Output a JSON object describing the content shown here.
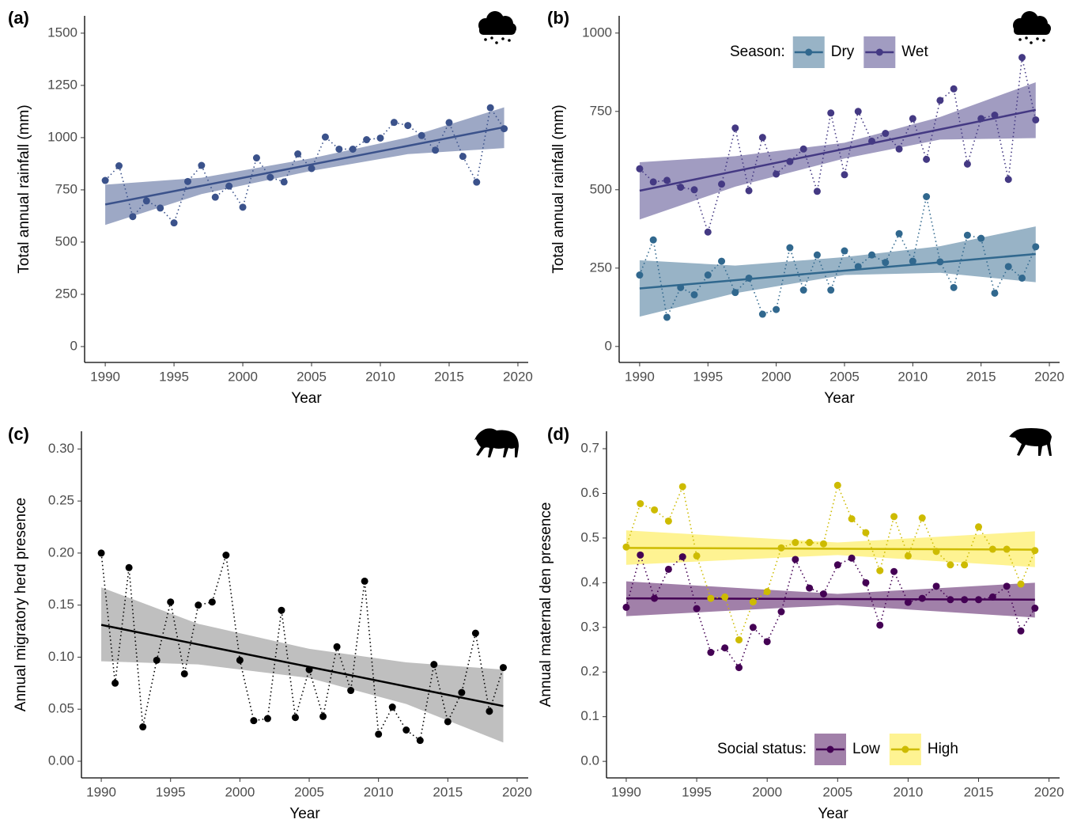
{
  "chart_data": [
    {
      "type": "line",
      "panel_label": "(a)",
      "x_label": "Year",
      "y_label": "Total annual rainfall (mm)",
      "x": [
        1990,
        1991,
        1992,
        1993,
        1994,
        1995,
        1996,
        1997,
        1998,
        1999,
        2000,
        2001,
        2002,
        2003,
        2004,
        2005,
        2006,
        2007,
        2008,
        2009,
        2010,
        2011,
        2012,
        2013,
        2014,
        2015,
        2016,
        2017,
        2018,
        2019
      ],
      "xlim": [
        1988.5,
        2020.75
      ],
      "xticks": [
        1990,
        1995,
        2000,
        2005,
        2010,
        2015,
        2020
      ],
      "ylim": [
        -76,
        1583
      ],
      "yticks": [
        0,
        250,
        500,
        750,
        1000,
        1250,
        1500
      ],
      "icon": "rain",
      "series": [
        {
          "color": "#3b528b",
          "values": [
            795,
            865,
            622,
            697,
            663,
            592,
            790,
            867,
            715,
            768,
            667,
            903,
            810,
            788,
            922,
            852,
            1003,
            945,
            945,
            990,
            998,
            1073,
            1058,
            1010,
            940,
            1072,
            910,
            787,
            1143,
            1043
          ],
          "fit": {
            "x": [
              1990,
              2019
            ],
            "values": [
              680,
              1050
            ]
          },
          "ribbon": {
            "x": [
              1990,
              1997,
              2005,
              2012,
              2019
            ],
            "lower": [
              582,
              730,
              841,
              921,
              950
            ],
            "upper": [
              775,
              808,
              901,
              1001,
              1145
            ]
          }
        }
      ]
    },
    {
      "type": "line",
      "panel_label": "(b)",
      "x_label": "Year",
      "y_label": "Total annual rainfall (mm)",
      "x": [
        1990,
        1991,
        1992,
        1993,
        1994,
        1995,
        1996,
        1997,
        1998,
        1999,
        2000,
        2001,
        2002,
        2003,
        2004,
        2005,
        2006,
        2007,
        2008,
        2009,
        2010,
        2011,
        2012,
        2013,
        2014,
        2015,
        2016,
        2017,
        2018,
        2019
      ],
      "xlim": [
        1988.5,
        2020.75
      ],
      "xticks": [
        1990,
        1995,
        2000,
        2005,
        2010,
        2015,
        2020
      ],
      "ylim": [
        -51,
        1055
      ],
      "yticks": [
        0,
        250,
        500,
        750,
        1000
      ],
      "icon": "rain",
      "legend_title": "Season:",
      "legend_position": "top",
      "series": [
        {
          "name": "Dry",
          "color": "#31688e",
          "values": [
            228,
            340,
            93,
            188,
            165,
            228,
            272,
            172,
            218,
            103,
            118,
            315,
            180,
            292,
            180,
            305,
            255,
            292,
            268,
            360,
            272,
            478,
            270,
            188,
            355,
            345,
            170,
            255,
            218,
            318
          ],
          "fit": {
            "x": [
              1990,
              2019
            ],
            "values": [
              185,
              295
            ]
          },
          "ribbon": {
            "x": [
              1990,
              1997,
              2005,
              2012,
              2019
            ],
            "lower": [
              95,
              170,
              228,
              235,
              205
            ],
            "upper": [
              275,
              258,
              285,
              320,
              383
            ]
          }
        },
        {
          "name": "Wet",
          "color": "#443983",
          "values": [
            567,
            525,
            530,
            508,
            500,
            365,
            518,
            697,
            497,
            667,
            550,
            590,
            630,
            495,
            745,
            548,
            750,
            655,
            680,
            630,
            727,
            597,
            785,
            822,
            582,
            727,
            738,
            533,
            922,
            723
          ],
          "fit": {
            "x": [
              1990,
              2019
            ],
            "values": [
              497,
              755
            ]
          },
          "ribbon": {
            "x": [
              1990,
              1997,
              2005,
              2012,
              2019
            ],
            "lower": [
              405,
              510,
              600,
              660,
              665
            ],
            "upper": [
              588,
              607,
              650,
              732,
              843
            ]
          }
        }
      ]
    },
    {
      "type": "line",
      "panel_label": "(c)",
      "x_label": "Year",
      "y_label": "Annual migratory herd presence",
      "x": [
        1990,
        1991,
        1992,
        1993,
        1994,
        1995,
        1996,
        1997,
        1998,
        1999,
        2000,
        2001,
        2002,
        2003,
        2004,
        2005,
        2006,
        2007,
        2008,
        2009,
        2010,
        2011,
        2012,
        2013,
        2014,
        2015,
        2016,
        2017,
        2018,
        2019
      ],
      "xlim": [
        1988.57,
        2020.8
      ],
      "xticks": [
        1990,
        1995,
        2000,
        2005,
        2010,
        2015,
        2020
      ],
      "ylim": [
        -0.016,
        0.317
      ],
      "yticks": [
        {
          "value": 0,
          "label": "0.00"
        },
        0.05,
        {
          "value": 0.1,
          "label": "0.10"
        },
        0.15,
        {
          "value": 0.2,
          "label": "0.20"
        },
        0.25,
        {
          "value": 0.3,
          "label": "0.30"
        }
      ],
      "icon": "wildebeest",
      "series": [
        {
          "color": "#000000",
          "ribbon_color": "#7f7f7f",
          "values": [
            0.2,
            0.075,
            0.186,
            0.033,
            0.097,
            0.153,
            0.084,
            0.15,
            0.153,
            0.198,
            0.097,
            0.039,
            0.041,
            0.145,
            0.042,
            0.088,
            0.043,
            0.11,
            0.068,
            0.173,
            0.026,
            0.052,
            0.03,
            0.02,
            0.093,
            0.038,
            0.066,
            0.123,
            0.048,
            0.09
          ],
          "fit": {
            "x": [
              1990,
              2019
            ],
            "values": [
              0.131,
              0.053
            ]
          },
          "ribbon": {
            "x": [
              1990,
              1997,
              2005,
              2012,
              2019
            ],
            "lower": [
              0.096,
              0.093,
              0.08,
              0.055,
              0.018
            ],
            "upper": [
              0.167,
              0.132,
              0.108,
              0.095,
              0.088
            ]
          }
        }
      ]
    },
    {
      "type": "line",
      "panel_label": "(d)",
      "x_label": "Year",
      "y_label": "Annual maternal den presence",
      "x": [
        1990,
        1991,
        1992,
        1993,
        1994,
        1995,
        1996,
        1997,
        1998,
        1999,
        2000,
        2001,
        2002,
        2003,
        2004,
        2005,
        2006,
        2007,
        2008,
        2009,
        2010,
        2011,
        2012,
        2013,
        2014,
        2015,
        2016,
        2017,
        2018,
        2019
      ],
      "xlim": [
        1988.6,
        2020.75
      ],
      "xticks": [
        1990,
        1995,
        2000,
        2005,
        2010,
        2015,
        2020
      ],
      "ylim": [
        -0.037,
        0.739
      ],
      "yticks": [
        {
          "value": 0,
          "label": "0.0"
        },
        0.1,
        0.2,
        0.3,
        0.4,
        0.5,
        0.6,
        0.7
      ],
      "icon": "hyena",
      "legend_title": "Social status:",
      "legend_position": "bottom",
      "series": [
        {
          "name": "Low",
          "color": "#440154",
          "values": [
            0.345,
            0.462,
            0.365,
            0.43,
            0.458,
            0.342,
            0.244,
            0.254,
            0.21,
            0.3,
            0.268,
            0.335,
            0.452,
            0.388,
            0.375,
            0.44,
            0.455,
            0.4,
            0.305,
            0.425,
            0.356,
            0.365,
            0.392,
            0.362,
            0.362,
            0.362,
            0.368,
            0.392,
            0.292,
            0.343
          ],
          "fit": {
            "x": [
              1990,
              2019
            ],
            "values": [
              0.365,
              0.362
            ]
          },
          "ribbon": {
            "x": [
              1990,
              2005,
              2019
            ],
            "lower": [
              0.325,
              0.35,
              0.322
            ],
            "upper": [
              0.403,
              0.375,
              0.4
            ]
          }
        },
        {
          "name": "High",
          "color": "#cdbb00",
          "ribbon_color": "#fde725",
          "values": [
            0.48,
            0.577,
            0.563,
            0.538,
            0.615,
            0.46,
            0.365,
            0.368,
            0.272,
            0.357,
            0.38,
            0.478,
            0.49,
            0.49,
            0.487,
            0.618,
            0.543,
            0.512,
            0.427,
            0.548,
            0.46,
            0.545,
            0.47,
            0.44,
            0.44,
            0.525,
            0.475,
            0.475,
            0.397,
            0.472
          ],
          "fit": {
            "x": [
              1990,
              2019
            ],
            "values": [
              0.478,
              0.474
            ]
          },
          "ribbon": {
            "x": [
              1990,
              2005,
              2019
            ],
            "lower": [
              0.44,
              0.462,
              0.435
            ],
            "upper": [
              0.517,
              0.49,
              0.515
            ]
          }
        }
      ]
    }
  ]
}
